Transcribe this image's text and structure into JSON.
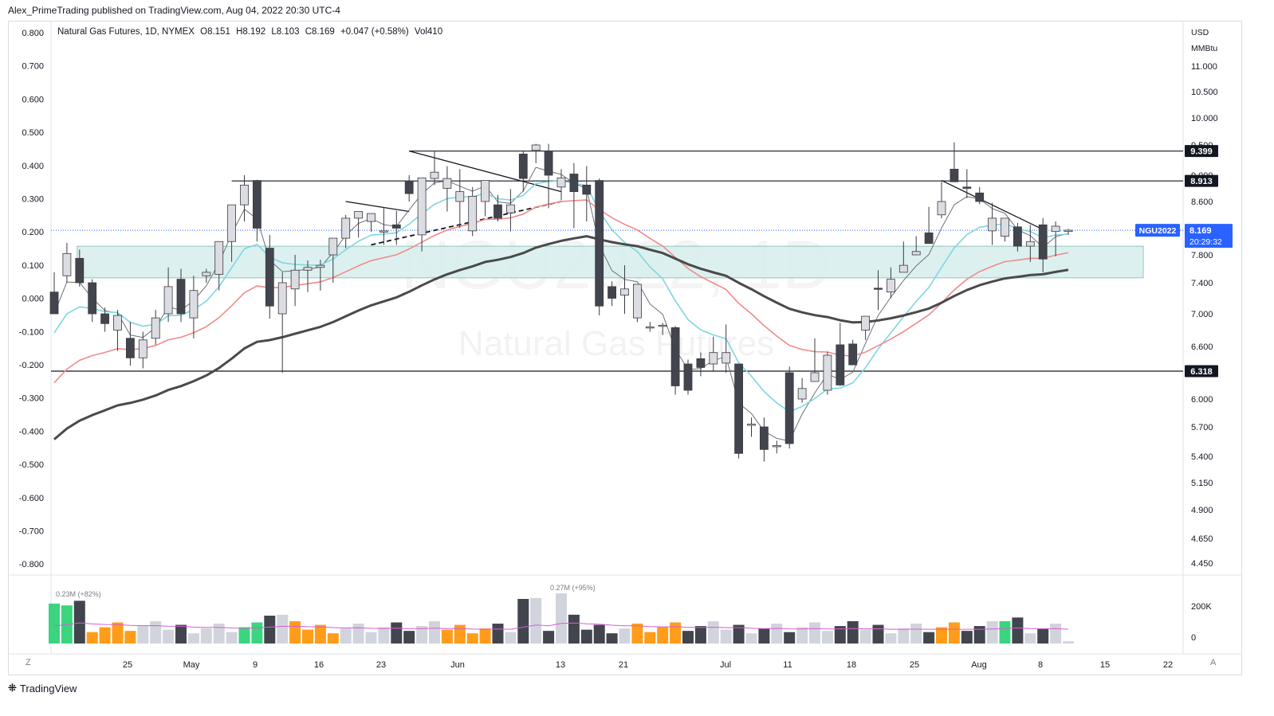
{
  "publisher_line": "Alex_PrimeTrading published on TradingView.com, Aug 04, 2022 20:30 UTC-4",
  "legend": {
    "title": "Natural Gas Futures, 1D, NYMEX",
    "open": "O8.151",
    "high": "H8.192",
    "low": "L8.103",
    "close": "C8.169",
    "change": "+0.047 (+0.58%)",
    "volume": "Vol410"
  },
  "watermark": {
    "symbol": "NGU2022, 1D",
    "name": "Natural Gas Futures"
  },
  "footer": {
    "brand": "TradingView"
  },
  "corner": {
    "left": "Z",
    "right": "A"
  },
  "colors": {
    "bull": "#dcdde2",
    "bear": "#43454e",
    "wick": "#3a3b42",
    "ma_fast": "#6f7078",
    "ma_cyan": "#7fd6e0",
    "ma_red": "#f08a8a",
    "ma_slow": "#4a4a4a",
    "zone": "#d6efec",
    "vol_pink": "#d65cd6",
    "accent_blue": "#2962ff",
    "vol_green": "#3ad57e",
    "vol_orange": "#ff9c1a"
  },
  "chart_data": {
    "type": "candlestick",
    "price_unit": "USD/MMBtu",
    "x_tick_labels": [
      "25",
      "May",
      "9",
      "16",
      "23",
      "Jun",
      "13",
      "21",
      "Jul",
      "11",
      "18",
      "25",
      "Aug",
      "8",
      "15",
      "22"
    ],
    "left_axis_labels": [
      "0.800",
      "0.700",
      "0.600",
      "0.500",
      "0.400",
      "0.300",
      "0.200",
      "0.100",
      "0.000",
      "-0.100",
      "-0.200",
      "-0.300",
      "-0.400",
      "-0.500",
      "-0.600",
      "-0.700",
      "-0.800"
    ],
    "right_axis_header": [
      "USD",
      "MMBtu"
    ],
    "right_axis_labels": [
      "11.000",
      "10.500",
      "10.000",
      "9.500",
      "9.000",
      "8.600",
      "7.800",
      "7.400",
      "7.000",
      "6.600",
      "6.000",
      "5.700",
      "5.400",
      "5.150",
      "4.900",
      "4.650",
      "4.450"
    ],
    "levels": [
      {
        "label": "9.399",
        "price": 9.399
      },
      {
        "label": "8.913",
        "price": 8.913
      },
      {
        "label": "6.318",
        "price": 6.318
      }
    ],
    "last_price": {
      "symbol": "NGU2022",
      "price": "8.169",
      "countdown": "20:29:32",
      "value": 8.169
    },
    "zone": {
      "low": 7.47,
      "high": 7.93
    },
    "candles_ohlc": [
      [
        7.28,
        7.55,
        7.08,
        7.0
      ],
      [
        7.5,
        7.98,
        7.4,
        7.82
      ],
      [
        7.75,
        7.88,
        7.35,
        7.4
      ],
      [
        7.4,
        7.45,
        6.9,
        7.0
      ],
      [
        7.0,
        7.08,
        6.78,
        6.88
      ],
      [
        6.8,
        7.05,
        6.55,
        6.98
      ],
      [
        6.7,
        6.9,
        6.38,
        6.47
      ],
      [
        6.47,
        6.78,
        6.35,
        6.68
      ],
      [
        6.7,
        7.05,
        6.62,
        6.95
      ],
      [
        7.0,
        7.62,
        6.9,
        7.35
      ],
      [
        7.45,
        7.6,
        6.9,
        7.0
      ],
      [
        6.95,
        7.5,
        6.7,
        7.3
      ],
      [
        7.5,
        7.6,
        7.4,
        7.55
      ],
      [
        7.52,
        7.9,
        7.3,
        8.0
      ],
      [
        8.0,
        8.3,
        7.7,
        8.55
      ],
      [
        8.55,
        9.0,
        8.3,
        8.85
      ],
      [
        8.92,
        8.93,
        8.0,
        8.2
      ],
      [
        7.9,
        8.1,
        6.94,
        7.1
      ],
      [
        7.0,
        7.55,
        6.3,
        7.4
      ],
      [
        7.32,
        7.8,
        7.1,
        7.58
      ],
      [
        7.58,
        7.72,
        7.28,
        7.62
      ],
      [
        7.62,
        7.73,
        7.3,
        7.65
      ],
      [
        7.8,
        7.86,
        7.4,
        8.05
      ],
      [
        8.05,
        8.4,
        7.9,
        8.35
      ],
      [
        8.35,
        8.45,
        8.06,
        8.45
      ],
      [
        8.3,
        8.41,
        8.15,
        8.42
      ],
      [
        8.16,
        8.5,
        7.95,
        8.16
      ],
      [
        8.25,
        8.46,
        7.95,
        8.2
      ],
      [
        8.9,
        9.0,
        8.6,
        8.72
      ],
      [
        8.1,
        8.9,
        7.85,
        8.96
      ],
      [
        8.95,
        9.4,
        8.85,
        9.05
      ],
      [
        8.8,
        9.15,
        8.45,
        8.95
      ],
      [
        8.6,
        9.1,
        8.2,
        8.75
      ],
      [
        8.16,
        8.82,
        8.08,
        8.68
      ],
      [
        8.6,
        8.85,
        8.38,
        8.92
      ],
      [
        8.55,
        8.7,
        8.3,
        8.35
      ],
      [
        8.43,
        8.79,
        8.15,
        8.55
      ],
      [
        9.35,
        9.4,
        8.75,
        8.95
      ],
      [
        9.41,
        9.52,
        9.2,
        9.5
      ],
      [
        9.4,
        9.52,
        8.5,
        9.0
      ],
      [
        8.82,
        9.1,
        8.62,
        8.96
      ],
      [
        9.02,
        9.2,
        8.2,
        8.75
      ],
      [
        8.85,
        9.15,
        8.3,
        8.71
      ],
      [
        8.92,
        8.95,
        6.98,
        7.1
      ],
      [
        7.35,
        7.42,
        7.1,
        7.2
      ],
      [
        7.24,
        7.65,
        7.0,
        7.32
      ],
      [
        6.95,
        7.15,
        6.9,
        7.38
      ],
      [
        6.84,
        6.9,
        6.78,
        6.84
      ],
      [
        6.86,
        6.89,
        6.74,
        6.86
      ],
      [
        6.83,
        6.85,
        6.05,
        6.15
      ],
      [
        6.4,
        6.45,
        6.05,
        6.1
      ],
      [
        6.46,
        6.53,
        6.26,
        6.36
      ],
      [
        6.4,
        6.72,
        6.32,
        6.53
      ],
      [
        6.41,
        6.87,
        6.3,
        6.53
      ],
      [
        6.4,
        6.4,
        5.38,
        5.43
      ],
      [
        5.73,
        5.8,
        5.6,
        5.73
      ],
      [
        5.7,
        5.8,
        5.35,
        5.47
      ],
      [
        5.5,
        5.56,
        5.43,
        5.51
      ],
      [
        6.3,
        6.37,
        5.48,
        5.53
      ],
      [
        6.0,
        6.24,
        5.96,
        6.12
      ],
      [
        6.2,
        6.7,
        6.2,
        6.3
      ],
      [
        6.1,
        6.54,
        6.05,
        6.5
      ],
      [
        6.62,
        6.89,
        6.15,
        6.16
      ],
      [
        6.63,
        6.68,
        6.44,
        6.39
      ],
      [
        6.8,
        6.97,
        6.68,
        6.97
      ],
      [
        7.33,
        7.58,
        7.05,
        7.32
      ],
      [
        7.28,
        7.62,
        7.2,
        7.45
      ],
      [
        7.55,
        8.0,
        7.55,
        7.65
      ],
      [
        7.8,
        8.08,
        7.85,
        7.85
      ],
      [
        8.13,
        8.52,
        8.1,
        7.97
      ],
      [
        8.4,
        8.9,
        8.35,
        8.6
      ],
      [
        9.1,
        9.55,
        8.93,
        8.9
      ],
      [
        8.82,
        9.1,
        8.65,
        8.8
      ],
      [
        8.73,
        8.82,
        8.56,
        8.6
      ],
      [
        8.16,
        8.58,
        7.95,
        8.35
      ],
      [
        8.08,
        8.25,
        8.0,
        8.35
      ],
      [
        8.22,
        8.28,
        7.85,
        7.93
      ],
      [
        7.93,
        8.25,
        7.7,
        8.0
      ],
      [
        8.25,
        8.35,
        7.55,
        7.74
      ],
      [
        8.15,
        8.3,
        7.78,
        8.23
      ],
      [
        8.15,
        8.19,
        8.1,
        8.17
      ]
    ],
    "volume": {
      "axis_labels": [
        "200K",
        "0"
      ],
      "annotations": [
        {
          "text": "0.23M (+82%)",
          "value": 230000
        },
        {
          "text": "0.27M (+95%)",
          "value": 270000
        }
      ]
    }
  }
}
